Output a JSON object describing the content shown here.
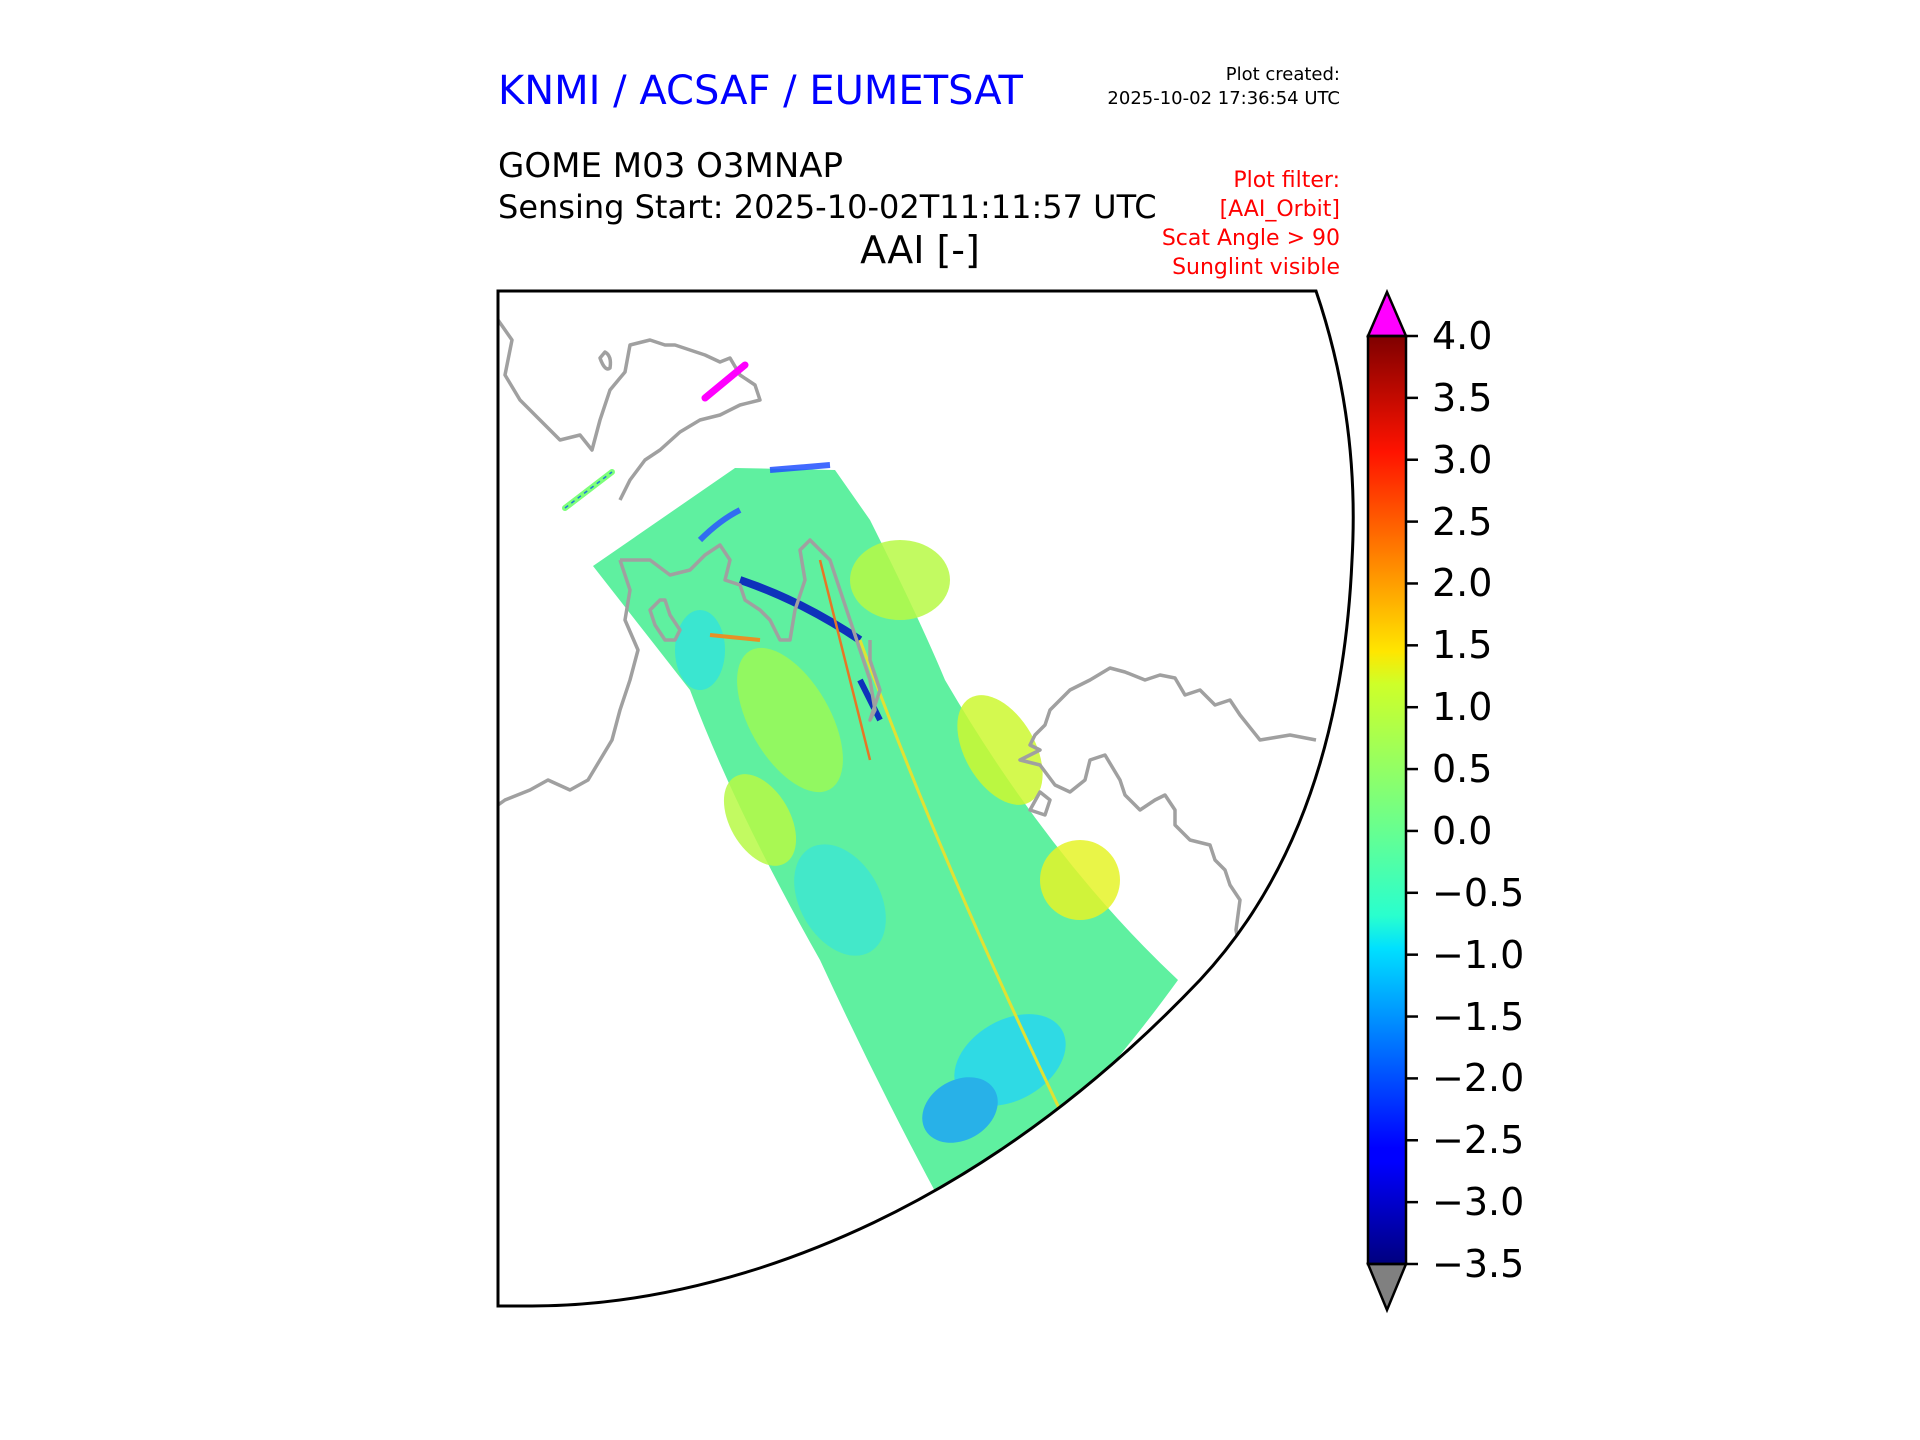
{
  "header": {
    "organization": "KNMI / ACSAF / EUMETSAT",
    "plot_created_label": "Plot created:",
    "plot_created_time": "2025-10-02 17:36:54 UTC",
    "product": "GOME M03 O3MNAP",
    "sensing_start": "Sensing Start: 2025-10-02T11:11:57 UTC",
    "variable": "AAI [-]"
  },
  "plot_filter": [
    "Plot filter:",
    "[AAI_Orbit]",
    "Scat Angle > 90",
    "Sunglint visible"
  ],
  "colorbar": {
    "min": -3.5,
    "max": 4.0,
    "ticks": [
      "4.0",
      "3.5",
      "3.0",
      "2.5",
      "2.0",
      "1.5",
      "1.0",
      "0.5",
      "0.0",
      "−0.5",
      "−1.0",
      "−1.5",
      "−2.0",
      "−2.5",
      "−3.0",
      "−3.5"
    ],
    "over_color": "#ff00ff",
    "under_color": "#808080",
    "colormap": "jet"
  },
  "map": {
    "coastline_color": "#a0a0a0",
    "swath_background_value": -0.3,
    "swath_dominant_range": [
      -1.0,
      1.5
    ]
  }
}
